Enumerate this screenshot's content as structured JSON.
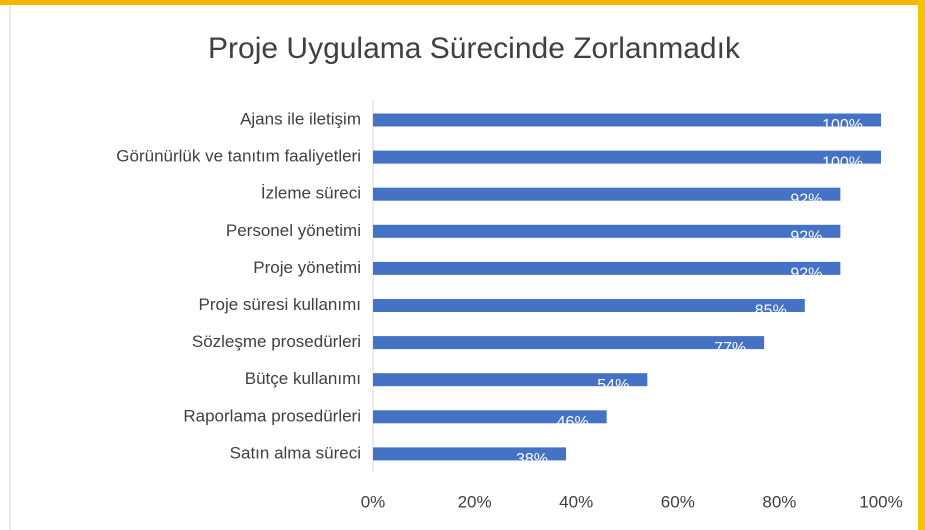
{
  "chart_data": {
    "type": "bar",
    "orientation": "horizontal",
    "title": "Proje Uygulama Sürecinde Zorlanmadık",
    "categories": [
      "Ajans ile iletişim",
      "Görünürlük ve tanıtım faaliyetleri",
      "İzleme süreci",
      "Personel yönetimi",
      "Proje yönetimi",
      "Proje süresi kullanımı",
      "Sözleşme prosedürleri",
      "Bütçe kullanımı",
      "Raporlama prosedürleri",
      "Satın alma süreci"
    ],
    "values": [
      100,
      100,
      92,
      92,
      92,
      85,
      77,
      54,
      46,
      38
    ],
    "value_labels": [
      "100%",
      "100%",
      "92%",
      "92%",
      "92%",
      "85%",
      "77%",
      "54%",
      "46%",
      "38%"
    ],
    "color": "#4472c4",
    "xlim": [
      0,
      100
    ],
    "xticks": [
      {
        "value": 0,
        "label": "0%"
      },
      {
        "value": 20,
        "label": "20%"
      },
      {
        "value": 40,
        "label": "40%"
      },
      {
        "value": 60,
        "label": "60%"
      },
      {
        "value": 80,
        "label": "80%"
      },
      {
        "value": 100,
        "label": "100%"
      }
    ],
    "grid": false
  }
}
